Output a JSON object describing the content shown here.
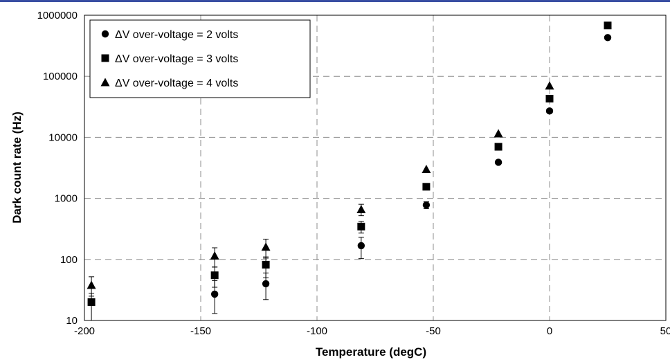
{
  "colors": {
    "top_rule": "#3a4fa3",
    "grid": "#8c8c8c",
    "marker": "#000000"
  },
  "chart_data": {
    "type": "scatter",
    "title": "",
    "xlabel": "Temperature (degC)",
    "ylabel": "Dark count rate (Hz)",
    "xlim": [
      -200,
      50
    ],
    "ylim": [
      10,
      1000000
    ],
    "yscale": "log",
    "grid": true,
    "legend_position": "top-left",
    "x_ticks": [
      "-200",
      "-150",
      "-100",
      "-50",
      "0",
      "50"
    ],
    "y_ticks": [
      "10",
      "100",
      "1000",
      "10000",
      "100000",
      "1000000"
    ],
    "series": [
      {
        "name": "ΔV over-voltage = 2 volts",
        "marker": "circle",
        "points": [
          {
            "x": -144,
            "y": 27,
            "err_low": 13,
            "err_high": 45
          },
          {
            "x": -122,
            "y": 40,
            "err_low": 22,
            "err_high": 60
          },
          {
            "x": -81,
            "y": 168,
            "err_low": 103,
            "err_high": 230
          },
          {
            "x": -53,
            "y": 780,
            "err_low": 680,
            "err_high": 880
          },
          {
            "x": -22,
            "y": 3900
          },
          {
            "x": 0,
            "y": 27000
          },
          {
            "x": 25,
            "y": 430000
          }
        ]
      },
      {
        "name": "ΔV over-voltage = 3 volts",
        "marker": "square",
        "points": [
          {
            "x": -197,
            "y": 20,
            "err_low": 10,
            "err_high": 28
          },
          {
            "x": -144,
            "y": 55,
            "err_low": 35,
            "err_high": 75
          },
          {
            "x": -122,
            "y": 82,
            "err_low": 50,
            "err_high": 110
          },
          {
            "x": -81,
            "y": 345,
            "err_low": 270,
            "err_high": 420
          },
          {
            "x": -53,
            "y": 1550
          },
          {
            "x": -22,
            "y": 7000
          },
          {
            "x": 0,
            "y": 43000
          },
          {
            "x": 25,
            "y": 680000
          }
        ]
      },
      {
        "name": "ΔV over-voltage = 4 volts",
        "marker": "triangle",
        "points": [
          {
            "x": -197,
            "y": 38,
            "err_low": 25,
            "err_high": 52
          },
          {
            "x": -144,
            "y": 115,
            "err_low": 75,
            "err_high": 155
          },
          {
            "x": -122,
            "y": 160,
            "err_low": 105,
            "err_high": 215
          },
          {
            "x": -81,
            "y": 660,
            "err_low": 520,
            "err_high": 800
          },
          {
            "x": -53,
            "y": 3000
          },
          {
            "x": -22,
            "y": 11500
          },
          {
            "x": 0,
            "y": 70000
          }
        ]
      }
    ]
  }
}
